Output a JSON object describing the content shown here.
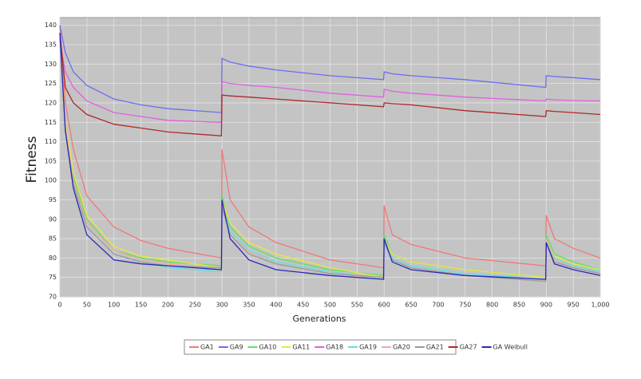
{
  "chart_data": {
    "type": "line",
    "x_label": "Generations",
    "y_label": "Fitness",
    "x": [
      0,
      10,
      25,
      50,
      100,
      150,
      200,
      299,
      300,
      315,
      350,
      400,
      500,
      599,
      600,
      615,
      650,
      750,
      899,
      900,
      915,
      950,
      1000
    ],
    "series": [
      {
        "name": "GA1",
        "color": "#f07878",
        "values": [
          140,
          120,
          108,
          96,
          88,
          84.5,
          82.5,
          80,
          108,
          95,
          88,
          84,
          79.5,
          77.5,
          93.5,
          86,
          83.5,
          80,
          78,
          91,
          85,
          82.5,
          80
        ]
      },
      {
        "name": "GA9",
        "color": "#6e6ef0",
        "values": [
          140,
          133,
          128,
          124.5,
          121,
          119.5,
          118.5,
          117.5,
          131.5,
          130.5,
          129.5,
          128.5,
          127,
          126,
          128,
          127.5,
          127,
          126,
          124,
          127,
          126.8,
          126.5,
          126
        ]
      },
      {
        "name": "GA10",
        "color": "#5ee05e",
        "values": [
          138,
          114,
          101,
          90,
          82,
          80,
          79,
          78,
          96,
          88,
          83,
          80,
          77,
          75.5,
          86,
          81,
          79,
          77,
          75,
          86,
          81,
          79,
          77
        ]
      },
      {
        "name": "GA11",
        "color": "#e8e83c",
        "values": [
          138,
          115,
          102,
          91,
          83,
          80.5,
          79.5,
          77.5,
          95,
          89,
          84,
          81,
          77.5,
          75,
          85,
          81,
          79,
          77,
          75,
          85,
          80.5,
          78.5,
          77
        ]
      },
      {
        "name": "GA18",
        "color": "#e060e0",
        "values": [
          136,
          128,
          124,
          120.5,
          117.5,
          116.5,
          115.5,
          115,
          125.5,
          125,
          124.5,
          124,
          122.5,
          121.5,
          123.5,
          123,
          122.5,
          121.5,
          120.5,
          121,
          120.8,
          120.6,
          120.5
        ]
      },
      {
        "name": "GA19",
        "color": "#5ee0e0",
        "values": [
          138,
          113,
          99,
          88,
          81,
          79,
          77.5,
          76.5,
          94,
          87,
          82,
          79,
          76.5,
          74.5,
          85,
          80,
          78,
          76,
          74.5,
          85,
          80,
          78,
          76.5
        ]
      },
      {
        "name": "GA20",
        "color": "#f0a8a8",
        "values": [
          138,
          114,
          100,
          89,
          82,
          79.5,
          78.5,
          77,
          94,
          86,
          81.5,
          78.5,
          76,
          74.5,
          85,
          79.5,
          77.5,
          75.5,
          74,
          85,
          79.5,
          77.5,
          76
        ]
      },
      {
        "name": "GA21",
        "color": "#9a9a9a",
        "values": [
          138,
          113,
          99,
          88,
          81,
          79,
          78,
          77.5,
          93,
          86,
          81,
          78.5,
          76,
          75,
          84,
          79.5,
          77.5,
          75.5,
          74,
          84,
          79,
          77.5,
          76
        ]
      },
      {
        "name": "GA27",
        "color": "#b02828",
        "values": [
          138,
          124,
          120,
          117,
          114.5,
          113.5,
          112.5,
          111.5,
          122,
          121.8,
          121.5,
          121,
          120,
          119,
          120,
          119.8,
          119.5,
          118,
          116.5,
          118,
          117.8,
          117.5,
          117
        ]
      },
      {
        "name": "GA Weibull",
        "color": "#2828b8",
        "values": [
          138,
          113,
          98,
          86,
          79.5,
          78.5,
          78,
          77,
          95,
          85,
          79.5,
          77,
          75.5,
          74.5,
          85,
          79,
          77,
          75.5,
          74.5,
          84,
          78.5,
          77,
          75.5
        ]
      }
    ],
    "xlim": [
      0,
      1000
    ],
    "ylim": [
      70,
      142
    ],
    "xticks": [
      0,
      50,
      100,
      150,
      200,
      250,
      300,
      350,
      400,
      450,
      500,
      550,
      600,
      650,
      700,
      750,
      800,
      850,
      900,
      950,
      {
        "value": 1000,
        "label": "1,000"
      }
    ],
    "yticks": [
      70,
      75,
      80,
      85,
      90,
      95,
      100,
      105,
      110,
      115,
      120,
      125,
      130,
      135,
      140
    ],
    "grid": true,
    "legend": "bottom"
  }
}
